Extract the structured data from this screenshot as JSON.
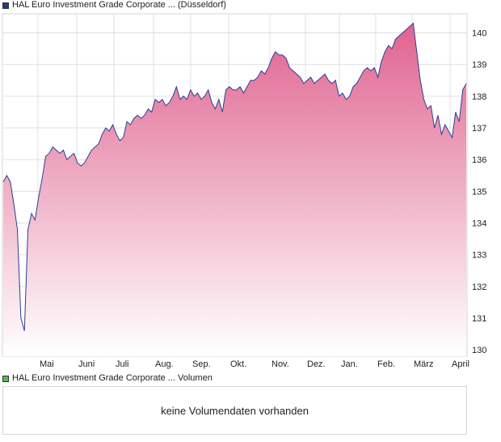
{
  "legend": {
    "price_label": "HAL Euro Investment Grade Corporate ... (Düsseldorf)",
    "volume_label": "HAL Euro Investment Grade Corporate ... Volumen",
    "price_color": "#1b3a8f",
    "volume_color": "#58b858"
  },
  "volume_panel": {
    "message": "keine Volumendaten vorhanden"
  },
  "colors": {
    "line": "#2c3e94",
    "fill_top": "#e0638f",
    "fill_bottom": "#ffffff",
    "grid": "#e0e0e0"
  },
  "chart_data": {
    "type": "area",
    "title": "",
    "xlabel": "",
    "ylabel": "",
    "ylim": [
      129.8,
      140.6
    ],
    "y_ticks": [
      130,
      131,
      132,
      133,
      134,
      135,
      136,
      137,
      138,
      139,
      140
    ],
    "x_ticks": [
      "Mai",
      "Juni",
      "Juli",
      "Aug.",
      "Sep.",
      "Okt.",
      "Nov.",
      "Dez.",
      "Jan.",
      "Feb.",
      "März",
      "April"
    ],
    "grid": true,
    "series": [
      {
        "values": [
          135.3,
          135.5,
          135.3,
          134.6,
          133.8,
          131.0,
          130.6,
          133.8,
          134.3,
          134.1,
          134.8,
          135.4,
          136.1,
          136.2,
          136.4,
          136.3,
          136.2,
          136.3,
          136.0,
          136.1,
          136.2,
          135.9,
          135.8,
          135.9,
          136.1,
          136.3,
          136.4,
          136.5,
          136.8,
          137.0,
          136.9,
          137.1,
          136.8,
          136.6,
          136.7,
          137.2,
          137.1,
          137.3,
          137.4,
          137.3,
          137.4,
          137.6,
          137.5,
          137.9,
          137.8,
          137.9,
          137.7,
          137.8,
          138.0,
          138.3,
          137.9,
          138.0,
          137.9,
          138.2,
          138.0,
          138.1,
          137.9,
          138.0,
          138.2,
          137.8,
          137.6,
          137.9,
          137.5,
          138.2,
          138.3,
          138.2,
          138.2,
          138.3,
          138.1,
          138.3,
          138.5,
          138.5,
          138.6,
          138.8,
          138.7,
          138.9,
          139.2,
          139.4,
          139.3,
          139.3,
          139.2,
          138.9,
          138.8,
          138.7,
          138.6,
          138.4,
          138.5,
          138.6,
          138.4,
          138.5,
          138.6,
          138.7,
          138.5,
          138.4,
          138.5,
          138.0,
          138.1,
          137.9,
          138.0,
          138.3,
          138.4,
          138.6,
          138.8,
          138.9,
          138.8,
          138.9,
          138.6,
          139.1,
          139.4,
          139.6,
          139.5,
          139.8,
          139.9,
          140.0,
          140.1,
          140.2,
          140.3,
          139.4,
          138.5,
          137.9,
          137.6,
          137.7,
          137.0,
          137.4,
          136.8,
          137.1,
          136.9,
          136.7,
          137.5,
          137.2,
          138.2,
          138.4
        ]
      }
    ]
  }
}
